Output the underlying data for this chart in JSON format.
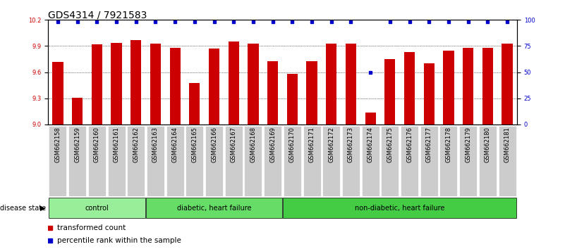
{
  "title": "GDS4314 / 7921583",
  "samples": [
    "GSM662158",
    "GSM662159",
    "GSM662160",
    "GSM662161",
    "GSM662162",
    "GSM662163",
    "GSM662164",
    "GSM662165",
    "GSM662166",
    "GSM662167",
    "GSM662168",
    "GSM662169",
    "GSM662170",
    "GSM662171",
    "GSM662172",
    "GSM662173",
    "GSM662174",
    "GSM662175",
    "GSM662176",
    "GSM662177",
    "GSM662178",
    "GSM662179",
    "GSM662180",
    "GSM662181"
  ],
  "bar_values": [
    9.72,
    9.31,
    9.92,
    9.94,
    9.97,
    9.93,
    9.88,
    9.48,
    9.87,
    9.95,
    9.93,
    9.73,
    9.58,
    9.73,
    9.93,
    9.93,
    9.14,
    9.75,
    9.83,
    9.7,
    9.85,
    9.88,
    9.88,
    9.93
  ],
  "percentile_values": [
    98,
    98,
    98,
    98,
    98,
    98,
    98,
    98,
    98,
    98,
    98,
    98,
    98,
    98,
    98,
    98,
    50,
    98,
    98,
    98,
    98,
    98,
    98,
    98
  ],
  "bar_color": "#cc0000",
  "percentile_color": "#0000cc",
  "ylim_left": [
    9.0,
    10.2
  ],
  "ylim_right": [
    0,
    100
  ],
  "yticks_left": [
    9.0,
    9.3,
    9.6,
    9.9,
    10.2
  ],
  "yticks_right": [
    0,
    25,
    50,
    75,
    100
  ],
  "groups": [
    {
      "label": "control",
      "start": 0,
      "end": 5,
      "color": "#99ee99"
    },
    {
      "label": "diabetic, heart failure",
      "start": 5,
      "end": 12,
      "color": "#66dd66"
    },
    {
      "label": "non-diabetic, heart failure",
      "start": 12,
      "end": 24,
      "color": "#44cc44"
    }
  ],
  "legend_bar_label": "transformed count",
  "legend_perc_label": "percentile rank within the sample",
  "disease_state_label": "disease state",
  "background_color": "#ffffff",
  "plot_bg_color": "#ffffff",
  "tick_cell_color": "#cccccc",
  "title_fontsize": 10,
  "tick_fontsize": 6,
  "label_fontsize": 8
}
